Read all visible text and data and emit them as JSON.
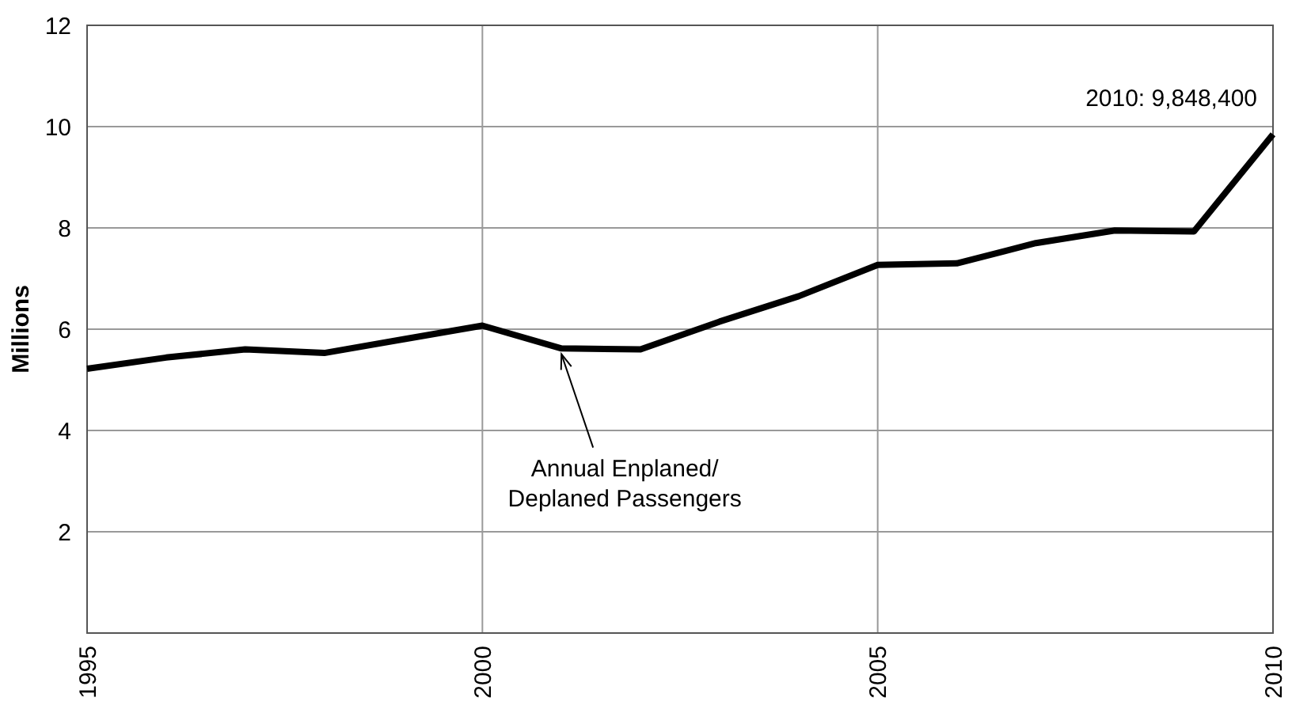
{
  "chart_data": {
    "type": "line",
    "ylabel": "Millions",
    "x": [
      1995,
      1996,
      1997,
      1998,
      1999,
      2000,
      2001,
      2002,
      2003,
      2004,
      2005,
      2006,
      2007,
      2008,
      2009,
      2010
    ],
    "series": [
      {
        "color": "#000000",
        "values": [
          5.22,
          5.44,
          5.6,
          5.53,
          5.8,
          6.07,
          5.62,
          5.6,
          6.15,
          6.65,
          7.27,
          7.3,
          7.7,
          7.95,
          7.93,
          9.8484
        ]
      }
    ],
    "xlim": [
      1995,
      2010
    ],
    "xticks": [
      1995,
      2000,
      2005,
      2010
    ],
    "ylim": [
      0,
      12
    ],
    "yticks": [
      2,
      4,
      6,
      8,
      10,
      12
    ],
    "grid": true,
    "marker": "none",
    "line_style": "solid",
    "annotations": [
      {
        "text": "2010: 9,848,400",
        "x": 2010,
        "y": 9.8484
      },
      {
        "text": "Annual Enplaned/\nDeplaned Passengers",
        "x": 2001,
        "y": 5.6
      }
    ]
  }
}
